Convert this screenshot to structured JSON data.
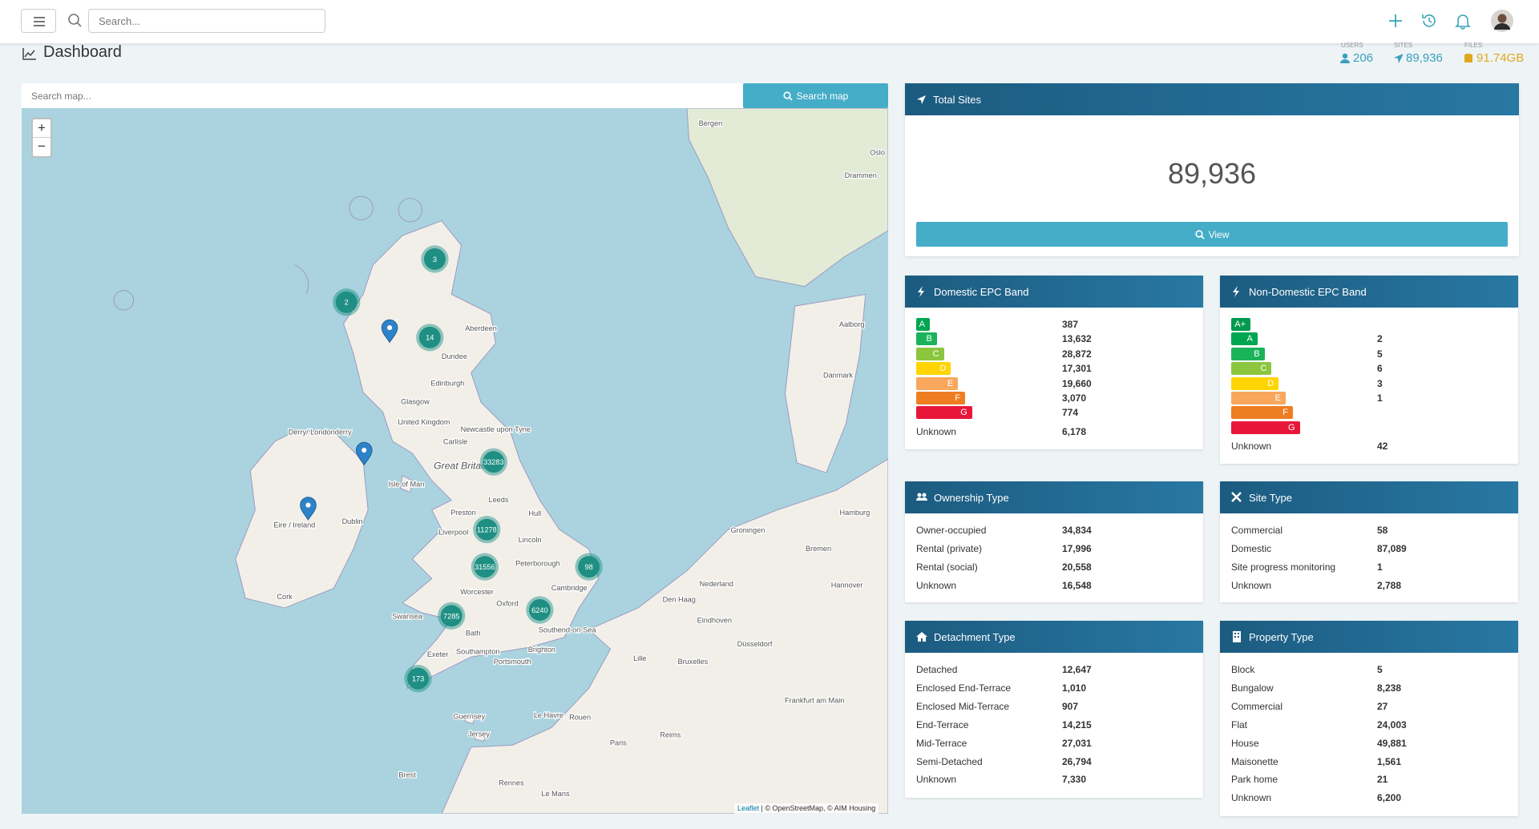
{
  "topbar": {
    "search_placeholder": "Search..."
  },
  "header": {
    "title": "Dashboard",
    "stats": [
      {
        "label": "USERS",
        "value": "206"
      },
      {
        "label": "SITES",
        "value": "89,936"
      },
      {
        "label": "FILES",
        "value": "91.74GB"
      }
    ]
  },
  "map": {
    "search_placeholder": "Search map...",
    "search_button": "Search map",
    "zoom_in": "+",
    "zoom_out": "−",
    "clusters": [
      "3",
      "2",
      "14",
      "33283",
      "11278",
      "31556",
      "98",
      "7285",
      "6240",
      "173"
    ],
    "places": [
      "Bergen",
      "Oslo",
      "Drammen",
      "Aberdeen",
      "Dundee",
      "Edinburgh",
      "Glasgow",
      "United Kingdom",
      "Newcastle upon Tyne",
      "Derry/ Londonderry",
      "Carlisle",
      "Isle of Man",
      "Great Britain",
      "Éire / Ireland",
      "Dublin",
      "Leeds",
      "Preston",
      "Liverpool",
      "Hull",
      "Lincoln",
      "Peterborough",
      "Cork",
      "Worcester",
      "Oxford",
      "Cambridge",
      "Swansea",
      "Bath",
      "Southend-on-Sea",
      "Exeter",
      "Southampton",
      "Brighton",
      "Portsmouth",
      "Aalborg",
      "Danmark",
      "Hamburg",
      "Groningen",
      "Bremen",
      "Hannover",
      "Nederland",
      "Den Haag",
      "Eindhoven",
      "Düsseldorf",
      "Lille",
      "Bruxelles",
      "Guernsey",
      "Jersey",
      "Le Havre",
      "Rouen",
      "Paris",
      "Rennes",
      "Brest",
      "Le Mans",
      "Frankfurt am Main",
      "Reims"
    ],
    "attribution_link": "Leaflet",
    "attribution": "| © OpenStreetMap, © AIM Housing"
  },
  "total_sites": {
    "title": "Total Sites",
    "value": "89,936",
    "button": "View"
  },
  "domestic_epc": {
    "title": "Domestic EPC Band",
    "rows": [
      {
        "band": "A",
        "value": "387"
      },
      {
        "band": "B",
        "value": "13,632"
      },
      {
        "band": "C",
        "value": "28,872"
      },
      {
        "band": "D",
        "value": "17,301"
      },
      {
        "band": "E",
        "value": "19,660"
      },
      {
        "band": "F",
        "value": "3,070"
      },
      {
        "band": "G",
        "value": "774"
      }
    ],
    "unknown_label": "Unknown",
    "unknown_value": "6,178"
  },
  "non_domestic_epc": {
    "title": "Non-Domestic EPC Band",
    "rows": [
      {
        "band": "A+",
        "value": null
      },
      {
        "band": "A",
        "value": "2"
      },
      {
        "band": "B",
        "value": "5"
      },
      {
        "band": "C",
        "value": "6"
      },
      {
        "band": "D",
        "value": "3"
      },
      {
        "band": "E",
        "value": "1"
      },
      {
        "band": "F",
        "value": null
      },
      {
        "band": "G",
        "value": null
      }
    ],
    "unknown_label": "Unknown",
    "unknown_value": "42"
  },
  "ownership_type": {
    "title": "Ownership Type",
    "rows": [
      {
        "label": "Owner-occupied",
        "value": "34,834"
      },
      {
        "label": "Rental (private)",
        "value": "17,996"
      },
      {
        "label": "Rental (social)",
        "value": "20,558"
      },
      {
        "label": "Unknown",
        "value": "16,548"
      }
    ]
  },
  "site_type": {
    "title": "Site Type",
    "rows": [
      {
        "label": "Commercial",
        "value": "58"
      },
      {
        "label": "Domestic",
        "value": "87,089"
      },
      {
        "label": "Site progress monitoring",
        "value": "1"
      },
      {
        "label": "Unknown",
        "value": "2,788"
      }
    ]
  },
  "detachment_type": {
    "title": "Detachment Type",
    "rows": [
      {
        "label": "Detached",
        "value": "12,647"
      },
      {
        "label": "Enclosed End-Terrace",
        "value": "1,010"
      },
      {
        "label": "Enclosed Mid-Terrace",
        "value": "907"
      },
      {
        "label": "End-Terrace",
        "value": "14,215"
      },
      {
        "label": "Mid-Terrace",
        "value": "27,031"
      },
      {
        "label": "Semi-Detached",
        "value": "26,794"
      },
      {
        "label": "Unknown",
        "value": "7,330"
      }
    ]
  },
  "property_type": {
    "title": "Property Type",
    "rows": [
      {
        "label": "Block",
        "value": "5"
      },
      {
        "label": "Bungalow",
        "value": "8,238"
      },
      {
        "label": "Commercial",
        "value": "27"
      },
      {
        "label": "Flat",
        "value": "24,003"
      },
      {
        "label": "House",
        "value": "49,881"
      },
      {
        "label": "Maisonette",
        "value": "1,561"
      },
      {
        "label": "Park home",
        "value": "21"
      },
      {
        "label": "Unknown",
        "value": "6,200"
      }
    ]
  }
}
